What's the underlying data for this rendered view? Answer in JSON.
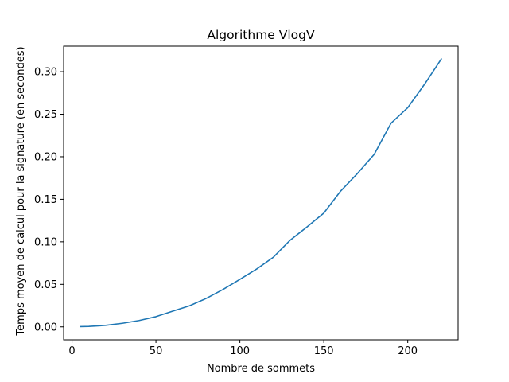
{
  "chart_data": {
    "type": "line",
    "title": "Algorithme VlogV",
    "xlabel": "Nombre de sommets",
    "ylabel": "Temps moyen de calcul pour la signature (en secondes)",
    "xlim": [
      -5,
      230
    ],
    "ylim": [
      -0.0152,
      0.33
    ],
    "xticks": [
      0,
      50,
      100,
      150,
      200
    ],
    "xtick_labels": [
      "0",
      "50",
      "100",
      "150",
      "200"
    ],
    "yticks": [
      0.0,
      0.05,
      0.1,
      0.15,
      0.2,
      0.25,
      0.3
    ],
    "ytick_labels": [
      "0.00",
      "0.05",
      "0.10",
      "0.15",
      "0.20",
      "0.25",
      "0.30"
    ],
    "grid": false,
    "series": [
      {
        "color": "#1f77b4",
        "x": [
          5,
          10,
          20,
          30,
          40,
          50,
          60,
          70,
          80,
          90,
          100,
          110,
          120,
          130,
          140,
          150,
          160,
          170,
          180,
          190,
          200,
          210,
          220
        ],
        "y": [
          0.0003,
          0.0005,
          0.0018,
          0.0042,
          0.0075,
          0.012,
          0.0185,
          0.0248,
          0.0335,
          0.044,
          0.0558,
          0.068,
          0.082,
          0.102,
          0.1175,
          0.1338,
          0.1596,
          0.1803,
          0.2028,
          0.2393,
          0.2577,
          0.2852,
          0.3149
        ]
      }
    ]
  }
}
